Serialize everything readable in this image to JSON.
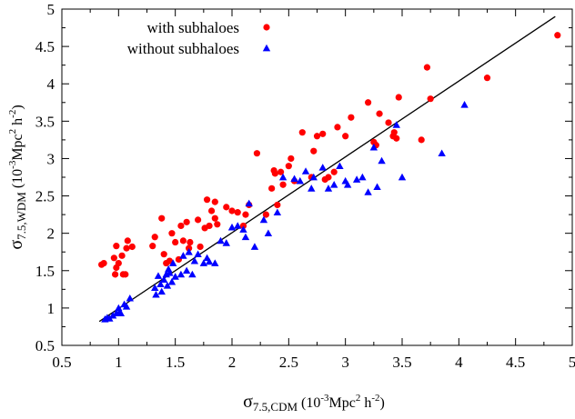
{
  "chart_data": {
    "type": "scatter",
    "xlim": [
      0.5,
      5
    ],
    "ylim": [
      0.5,
      5
    ],
    "x_ticks": [
      "0.5",
      "1",
      "1.5",
      "2",
      "2.5",
      "3",
      "3.5",
      "4",
      "4.5",
      "5"
    ],
    "y_ticks": [
      "0.5",
      "1",
      "1.5",
      "2",
      "2.5",
      "3",
      "3.5",
      "4",
      "4.5",
      "5"
    ],
    "xlabel": {
      "symbol": "σ",
      "sub": "7.5,CDM",
      "unit_a": " (10",
      "unit_sup1": "-3",
      "unit_b": "Mpc",
      "unit_sup2": "2",
      "unit_c": " h",
      "unit_sup3": "-2",
      "unit_d": ")"
    },
    "ylabel": {
      "symbol": "σ",
      "sub": "7.5,WDM",
      "unit_a": " (10",
      "unit_sup1": "-3",
      "unit_b": "Mpc",
      "unit_sup2": "2",
      "unit_c": " h",
      "unit_sup3": "-2",
      "unit_d": ")"
    },
    "legend_position": "top-left",
    "grid": false,
    "series": [
      {
        "name": "with subhaloes",
        "marker": "circle",
        "color": "#ff0000",
        "points": [
          [
            0.85,
            1.58
          ],
          [
            0.87,
            1.6
          ],
          [
            0.96,
            1.67
          ],
          [
            0.98,
            1.54
          ],
          [
            0.98,
            1.83
          ],
          [
            0.97,
            1.45
          ],
          [
            1.0,
            1.6
          ],
          [
            1.03,
            1.7
          ],
          [
            1.04,
            1.45
          ],
          [
            1.06,
            1.45
          ],
          [
            1.07,
            1.8
          ],
          [
            1.08,
            1.9
          ],
          [
            1.12,
            1.82
          ],
          [
            1.3,
            1.83
          ],
          [
            1.32,
            1.95
          ],
          [
            1.38,
            2.2
          ],
          [
            1.4,
            1.72
          ],
          [
            1.42,
            1.6
          ],
          [
            1.45,
            1.63
          ],
          [
            1.47,
            2.0
          ],
          [
            1.5,
            1.88
          ],
          [
            1.53,
            1.65
          ],
          [
            1.55,
            2.1
          ],
          [
            1.57,
            1.9
          ],
          [
            1.6,
            2.15
          ],
          [
            1.62,
            1.8
          ],
          [
            1.63,
            1.88
          ],
          [
            1.7,
            2.18
          ],
          [
            1.72,
            1.82
          ],
          [
            1.76,
            2.07
          ],
          [
            1.78,
            2.45
          ],
          [
            1.8,
            2.1
          ],
          [
            1.82,
            2.3
          ],
          [
            1.85,
            2.42
          ],
          [
            1.85,
            2.2
          ],
          [
            1.87,
            2.12
          ],
          [
            1.95,
            2.35
          ],
          [
            2.0,
            2.3
          ],
          [
            2.05,
            2.28
          ],
          [
            2.1,
            2.1
          ],
          [
            2.12,
            2.25
          ],
          [
            2.15,
            2.38
          ],
          [
            2.22,
            3.07
          ],
          [
            2.3,
            2.25
          ],
          [
            2.35,
            2.6
          ],
          [
            2.37,
            2.84
          ],
          [
            2.38,
            2.8
          ],
          [
            2.4,
            2.38
          ],
          [
            2.43,
            2.82
          ],
          [
            2.45,
            2.65
          ],
          [
            2.5,
            2.9
          ],
          [
            2.52,
            3.0
          ],
          [
            2.55,
            2.7
          ],
          [
            2.62,
            3.35
          ],
          [
            2.7,
            2.75
          ],
          [
            2.72,
            3.1
          ],
          [
            2.75,
            3.3
          ],
          [
            2.8,
            3.33
          ],
          [
            2.82,
            2.72
          ],
          [
            2.85,
            2.75
          ],
          [
            2.9,
            2.82
          ],
          [
            2.93,
            3.42
          ],
          [
            3.0,
            3.3
          ],
          [
            3.05,
            3.55
          ],
          [
            3.2,
            3.75
          ],
          [
            3.25,
            3.22
          ],
          [
            3.27,
            3.18
          ],
          [
            3.3,
            3.6
          ],
          [
            3.38,
            3.48
          ],
          [
            3.42,
            3.3
          ],
          [
            3.43,
            3.35
          ],
          [
            3.45,
            3.27
          ],
          [
            3.47,
            3.82
          ],
          [
            3.67,
            3.25
          ],
          [
            3.72,
            4.22
          ],
          [
            3.75,
            3.8
          ],
          [
            4.25,
            4.08
          ],
          [
            4.87,
            4.65
          ]
        ]
      },
      {
        "name": "without subhaloes",
        "marker": "triangle",
        "color": "#0000ff",
        "points": [
          [
            0.88,
            0.85
          ],
          [
            0.9,
            0.87
          ],
          [
            0.92,
            0.86
          ],
          [
            0.95,
            0.9
          ],
          [
            0.98,
            0.93
          ],
          [
            1.0,
            1.0
          ],
          [
            1.01,
            0.95
          ],
          [
            1.02,
            0.93
          ],
          [
            1.05,
            1.05
          ],
          [
            1.07,
            1.02
          ],
          [
            1.1,
            1.13
          ],
          [
            1.32,
            1.27
          ],
          [
            1.33,
            1.18
          ],
          [
            1.35,
            1.43
          ],
          [
            1.37,
            1.32
          ],
          [
            1.38,
            1.22
          ],
          [
            1.4,
            1.38
          ],
          [
            1.42,
            1.45
          ],
          [
            1.43,
            1.3
          ],
          [
            1.44,
            1.52
          ],
          [
            1.45,
            1.47
          ],
          [
            1.47,
            1.35
          ],
          [
            1.48,
            1.6
          ],
          [
            1.5,
            1.42
          ],
          [
            1.55,
            1.45
          ],
          [
            1.57,
            1.7
          ],
          [
            1.6,
            1.5
          ],
          [
            1.62,
            1.75
          ],
          [
            1.65,
            1.45
          ],
          [
            1.67,
            1.63
          ],
          [
            1.7,
            1.72
          ],
          [
            1.75,
            1.6
          ],
          [
            1.78,
            1.67
          ],
          [
            1.8,
            1.62
          ],
          [
            1.85,
            1.6
          ],
          [
            1.9,
            1.9
          ],
          [
            1.95,
            1.87
          ],
          [
            2.0,
            2.08
          ],
          [
            2.05,
            2.1
          ],
          [
            2.1,
            2.05
          ],
          [
            2.12,
            1.95
          ],
          [
            2.15,
            2.4
          ],
          [
            2.2,
            1.82
          ],
          [
            2.28,
            2.18
          ],
          [
            2.32,
            2.0
          ],
          [
            2.4,
            2.28
          ],
          [
            2.45,
            2.75
          ],
          [
            2.55,
            2.73
          ],
          [
            2.6,
            2.7
          ],
          [
            2.65,
            2.83
          ],
          [
            2.7,
            2.6
          ],
          [
            2.72,
            2.75
          ],
          [
            2.8,
            2.88
          ],
          [
            2.85,
            2.6
          ],
          [
            2.9,
            2.65
          ],
          [
            2.95,
            2.9
          ],
          [
            3.0,
            2.7
          ],
          [
            3.02,
            2.65
          ],
          [
            3.1,
            2.72
          ],
          [
            3.15,
            2.75
          ],
          [
            3.2,
            2.55
          ],
          [
            3.25,
            3.15
          ],
          [
            3.28,
            2.62
          ],
          [
            3.32,
            2.97
          ],
          [
            3.45,
            3.45
          ],
          [
            3.5,
            2.75
          ],
          [
            3.85,
            3.07
          ],
          [
            4.05,
            3.72
          ]
        ]
      }
    ],
    "fit_line": {
      "color": "#000000",
      "points": [
        [
          0.83,
          0.82
        ],
        [
          4.85,
          4.9
        ]
      ]
    }
  }
}
